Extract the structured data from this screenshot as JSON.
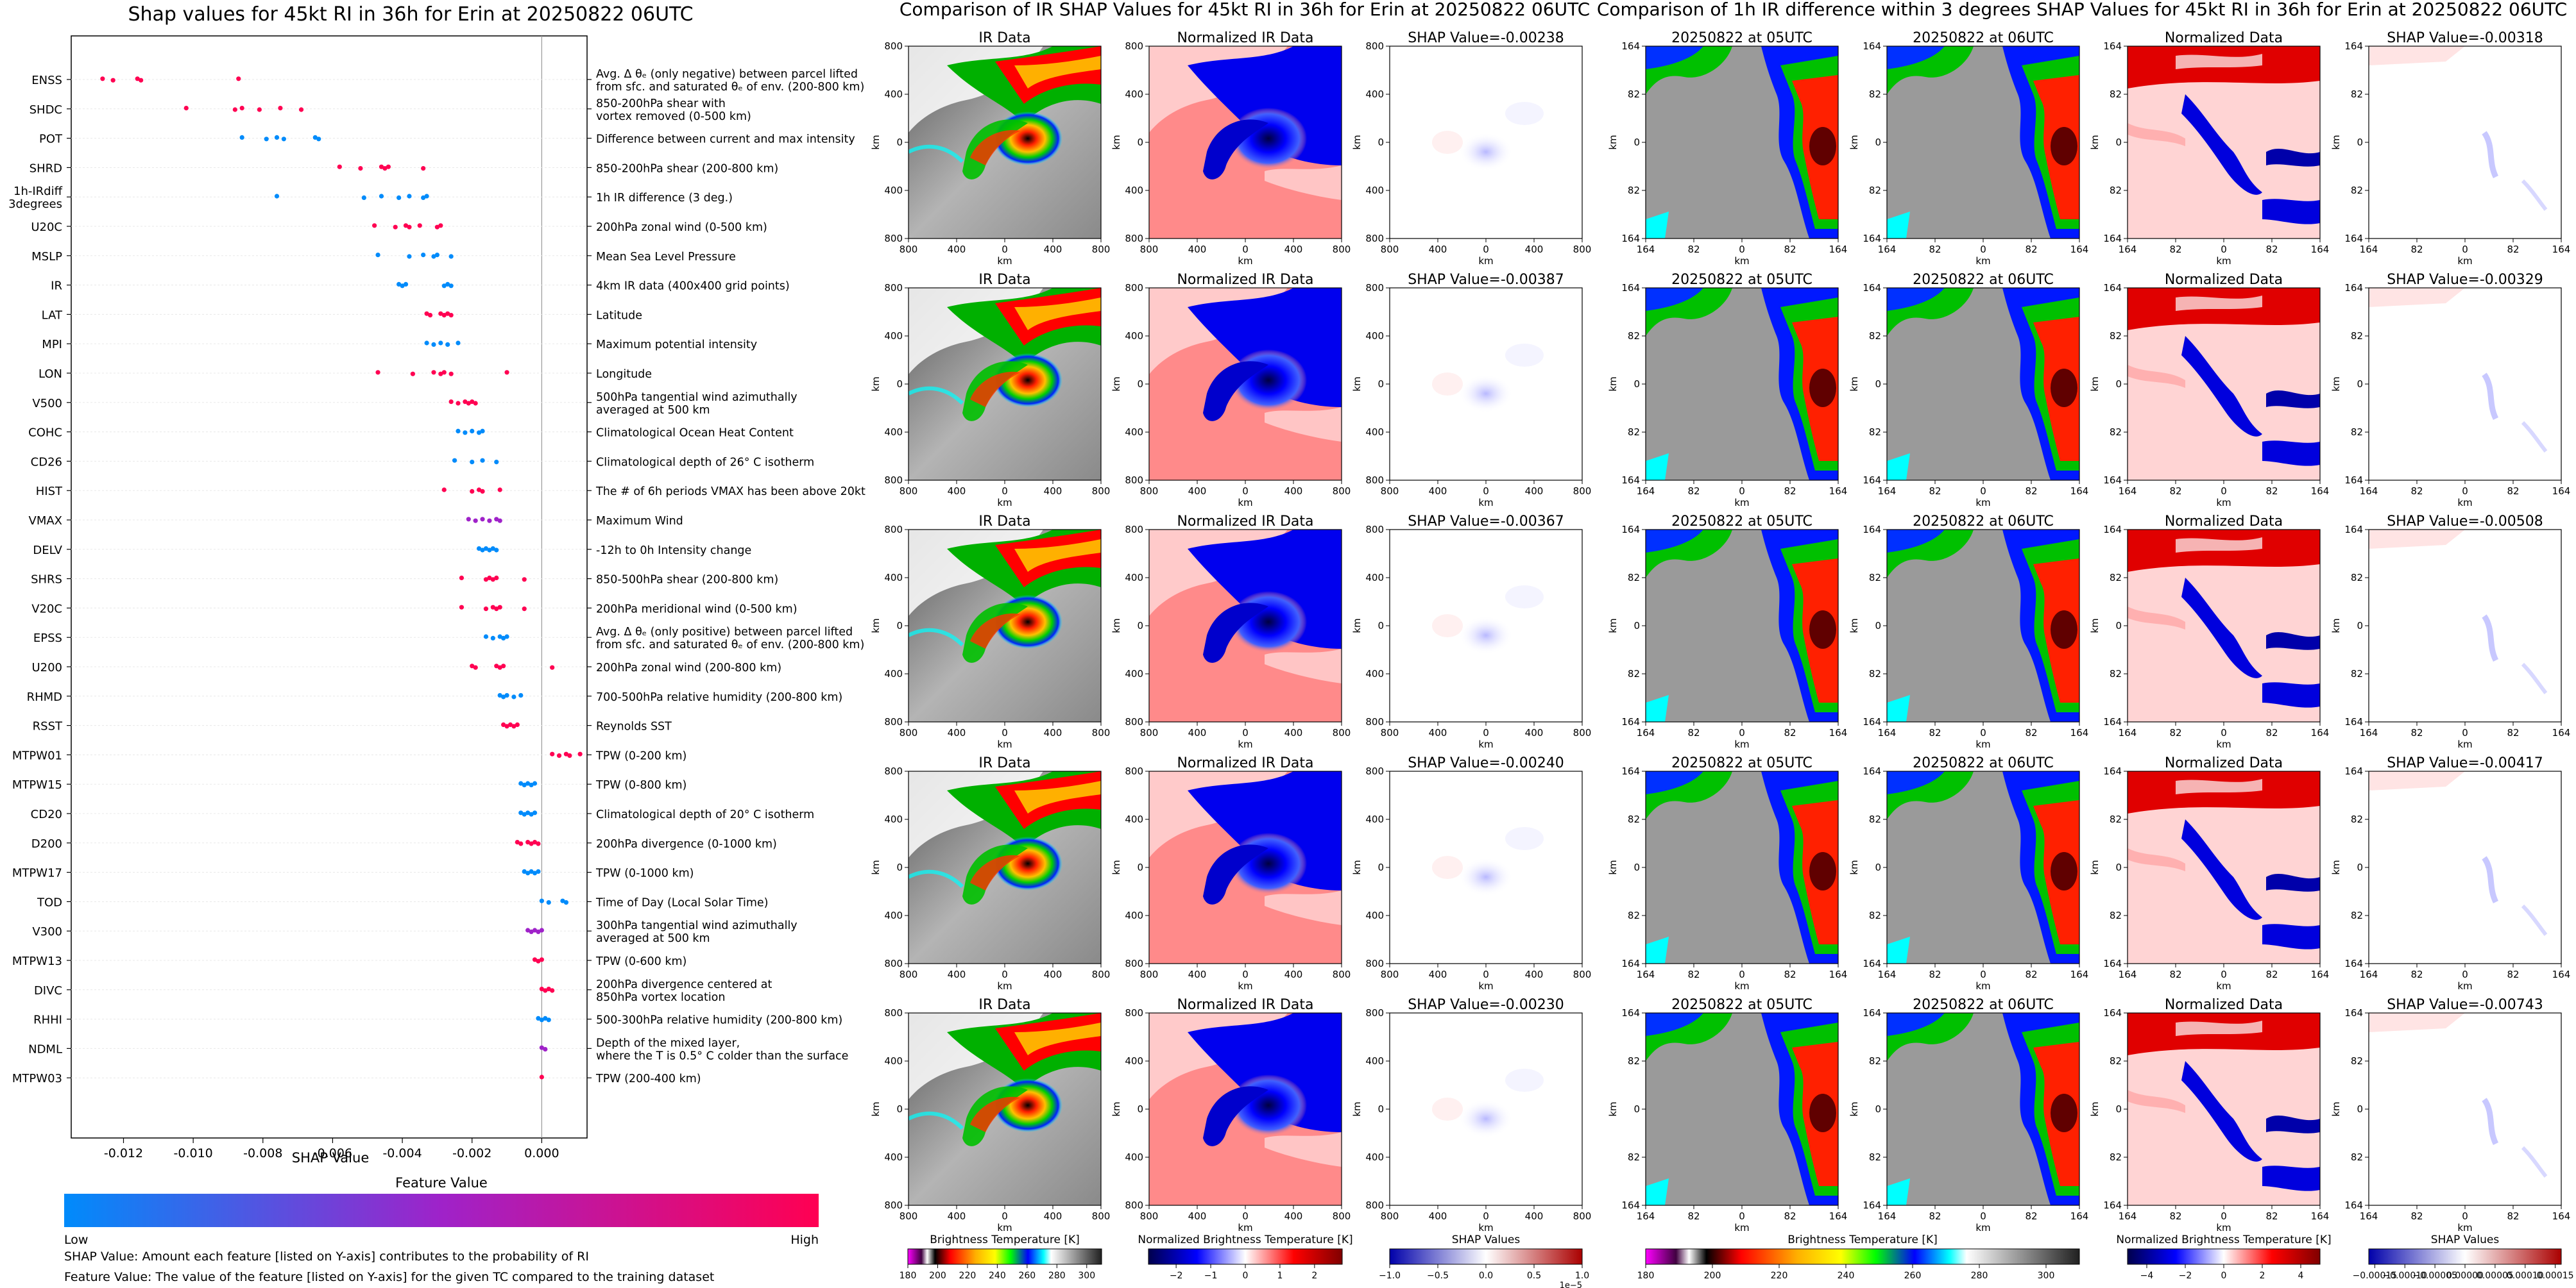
{
  "colors": {
    "low": "#008bfb",
    "mid": "#9f22c9",
    "high": "#ff0052",
    "shap_neg": "#0000cc",
    "shap_pos": "#cc0000"
  },
  "swarm": {
    "title": "Shap values for 45kt RI in 36h for Erin at 20250822 06UTC",
    "xlabel": "SHAP Value",
    "colorbar_title": "Feature Value",
    "colorbar_low": "Low",
    "colorbar_high": "High",
    "footnote_1": "SHAP Value: Amount each feature [listed on Y-axis] contributes to the probability of RI",
    "footnote_2": "Feature Value: The value of the feature [listed on Y-axis] for the given TC compared to the training dataset"
  },
  "chart_data": [
    {
      "type": "scatter",
      "title": "Shap values for 45kt RI in 36h for Erin at 20250822 06UTC",
      "xlabel": "SHAP Value",
      "xlim": [
        -0.0135,
        0.0013
      ],
      "xticks": [
        "-0.012",
        "-0.010",
        "-0.008",
        "-0.006",
        "-0.004",
        "-0.002",
        "0.000"
      ],
      "tick_values": [
        -0.012,
        -0.01,
        -0.008,
        -0.006,
        -0.004,
        -0.002,
        0.0
      ],
      "features": [
        {
          "name": "ENSS",
          "desc": "Avg. Δ θₑ (only negative) between parcel lifted\nfrom sfc. and saturated θₑ of env. (200-800 km)",
          "v": "high",
          "x": [
            -0.0126,
            -0.0123,
            -0.0116,
            -0.0115,
            -0.0087
          ]
        },
        {
          "name": "SHDC",
          "desc": "850-200hPa shear with\nvortex removed (0-500 km)",
          "v": "high",
          "x": [
            -0.0102,
            -0.0088,
            -0.0086,
            -0.0081,
            -0.0075,
            -0.0069
          ]
        },
        {
          "name": "POT",
          "desc": "Difference between current and max intensity",
          "v": "low",
          "x": [
            -0.0086,
            -0.0079,
            -0.0076,
            -0.0074,
            -0.0065,
            -0.0064
          ]
        },
        {
          "name": "SHRD",
          "desc": "850-200hPa shear (200-800 km)",
          "v": "high",
          "x": [
            -0.0058,
            -0.0052,
            -0.0046,
            -0.0045,
            -0.0044,
            -0.0034
          ]
        },
        {
          "name": "1h-IRdiff\n3degrees",
          "desc": "1h IR difference (3 deg.)",
          "v": "low",
          "x": [
            -0.0076,
            -0.0051,
            -0.0046,
            -0.0041,
            -0.0038,
            -0.0034,
            -0.0033
          ]
        },
        {
          "name": "U20C",
          "desc": "200hPa zonal wind (0-500 km)",
          "v": "high",
          "x": [
            -0.0048,
            -0.0042,
            -0.0039,
            -0.0038,
            -0.0035,
            -0.003,
            -0.0029
          ]
        },
        {
          "name": "MSLP",
          "desc": "Mean Sea Level Pressure",
          "v": "low",
          "x": [
            -0.0047,
            -0.0038,
            -0.0034,
            -0.0031,
            -0.003,
            -0.0026
          ]
        },
        {
          "name": "IR",
          "desc": "4km IR data (400x400 grid points)",
          "v": "low",
          "x": [
            -0.0041,
            -0.004,
            -0.0039,
            -0.0028,
            -0.0027,
            -0.0026
          ]
        },
        {
          "name": "LAT",
          "desc": "Latitude",
          "v": "high",
          "x": [
            -0.0033,
            -0.0032,
            -0.0029,
            -0.0028,
            -0.0027,
            -0.0026
          ]
        },
        {
          "name": "MPI",
          "desc": "Maximum potential intensity",
          "v": "low",
          "x": [
            -0.0033,
            -0.0031,
            -0.0029,
            -0.0027,
            -0.0024
          ]
        },
        {
          "name": "LON",
          "desc": "Longitude",
          "v": "high",
          "x": [
            -0.0047,
            -0.0037,
            -0.0031,
            -0.0029,
            -0.0028,
            -0.0026,
            -0.001
          ]
        },
        {
          "name": "V500",
          "desc": "500hPa tangential wind azimuthally\naveraged at 500 km",
          "v": "high",
          "x": [
            -0.0026,
            -0.0024,
            -0.0022,
            -0.0021,
            -0.002,
            -0.0019
          ]
        },
        {
          "name": "COHC",
          "desc": "Climatological Ocean Heat Content",
          "v": "low",
          "x": [
            -0.0024,
            -0.0022,
            -0.002,
            -0.0018,
            -0.0017
          ]
        },
        {
          "name": "CD26",
          "desc": "Climatological depth of 26° C isotherm",
          "v": "low",
          "x": [
            -0.0025,
            -0.002,
            -0.0017,
            -0.0013
          ]
        },
        {
          "name": "HIST",
          "desc": "The # of 6h periods VMAX has been above 20kt",
          "v": "high",
          "x": [
            -0.0028,
            -0.002,
            -0.0018,
            -0.0017,
            -0.0012
          ]
        },
        {
          "name": "VMAX",
          "desc": "Maximum Wind",
          "v": "mid",
          "x": [
            -0.0021,
            -0.0019,
            -0.0017,
            -0.0015,
            -0.0013,
            -0.0012
          ]
        },
        {
          "name": "DELV",
          "desc": "-12h to 0h Intensity change",
          "v": "low",
          "x": [
            -0.0018,
            -0.0017,
            -0.0016,
            -0.0015,
            -0.0014,
            -0.0013
          ]
        },
        {
          "name": "SHRS",
          "desc": "850-500hPa shear (200-800 km)",
          "v": "high",
          "x": [
            -0.0023,
            -0.0016,
            -0.0015,
            -0.0014,
            -0.0013,
            -0.0005
          ]
        },
        {
          "name": "V20C",
          "desc": "200hPa meridional wind (0-500 km)",
          "v": "high",
          "x": [
            -0.0023,
            -0.0016,
            -0.0014,
            -0.0013,
            -0.0012,
            -0.0005
          ]
        },
        {
          "name": "EPSS",
          "desc": "Avg. Δ θₑ (only positive) between parcel lifted\nfrom sfc. and saturated θₑ of env. (200-800 km)",
          "v": "low",
          "x": [
            -0.0016,
            -0.0014,
            -0.0012,
            -0.0011,
            -0.001
          ]
        },
        {
          "name": "U200",
          "desc": "200hPa zonal wind (200-800 km)",
          "v": "high",
          "x": [
            -0.002,
            -0.0019,
            -0.0013,
            -0.0012,
            -0.0011,
            0.0003
          ]
        },
        {
          "name": "RHMD",
          "desc": "700-500hPa relative humidity (200-800 km)",
          "v": "low",
          "x": [
            -0.0012,
            -0.0011,
            -0.001,
            -0.0008,
            -0.0006
          ]
        },
        {
          "name": "RSST",
          "desc": "Reynolds SST",
          "v": "high",
          "x": [
            -0.0011,
            -0.001,
            -0.0009,
            -0.0008,
            -0.0007
          ]
        },
        {
          "name": "MTPW01",
          "desc": "TPW (0-200 km)",
          "v": "high",
          "x": [
            0.0003,
            0.0005,
            0.0007,
            0.0008,
            0.0011
          ]
        },
        {
          "name": "MTPW15",
          "desc": "TPW (0-800 km)",
          "v": "low",
          "x": [
            -0.0006,
            -0.0005,
            -0.0004,
            -0.0003,
            -0.0002
          ]
        },
        {
          "name": "CD20",
          "desc": "Climatological depth of 20° C isotherm",
          "v": "low",
          "x": [
            -0.0006,
            -0.0005,
            -0.0004,
            -0.0003,
            -0.0002
          ]
        },
        {
          "name": "D200",
          "desc": "200hPa divergence (0-1000 km)",
          "v": "high",
          "x": [
            -0.0007,
            -0.0006,
            -0.0004,
            -0.0003,
            -0.0002,
            -0.0001
          ]
        },
        {
          "name": "MTPW17",
          "desc": "TPW (0-1000 km)",
          "v": "low",
          "x": [
            -0.0005,
            -0.0004,
            -0.0003,
            -0.0002,
            -0.0001
          ]
        },
        {
          "name": "TOD",
          "desc": "Time of Day (Local Solar Time)",
          "v": "low",
          "x": [
            0.0,
            0.0002,
            0.0006,
            0.0007
          ]
        },
        {
          "name": "V300",
          "desc": "300hPa tangential wind azimuthally\naveraged at 500 km",
          "v": "mid",
          "x": [
            -0.0004,
            -0.0003,
            -0.0002,
            -0.0001,
            0.0
          ]
        },
        {
          "name": "MTPW13",
          "desc": "TPW (0-600 km)",
          "v": "high",
          "x": [
            -0.0002,
            -0.0001,
            0.0
          ]
        },
        {
          "name": "DIVC",
          "desc": "200hPa divergence centered at\n850hPa vortex location",
          "v": "high",
          "x": [
            0.0,
            0.0001,
            0.0002,
            0.0003
          ]
        },
        {
          "name": "RHHI",
          "desc": "500-300hPa relative humidity (200-800 km)",
          "v": "low",
          "x": [
            -0.0001,
            0.0,
            0.0001,
            0.0002
          ]
        },
        {
          "name": "NDML",
          "desc": "Depth of the mixed layer,\nwhere the T is 0.5° C colder than the surface",
          "v": "mid",
          "x": [
            0.0,
            0.0001
          ]
        },
        {
          "name": "MTPW03",
          "desc": "TPW (200-400 km)",
          "v": "high",
          "x": [
            0.0
          ]
        }
      ]
    },
    {
      "type": "heatmap",
      "title": "Comparison of IR SHAP Values for 45kt RI in 36h for Erin at 20250822 06UTC",
      "columns": [
        "IR Data",
        "Normalized IR Data"
      ],
      "shap_values": [
        "SHAP Value=-0.00238",
        "SHAP Value=-0.00387",
        "SHAP Value=-0.00367",
        "SHAP Value=-0.00240",
        "SHAP Value=-0.00230"
      ],
      "ticks": [
        "800",
        "400",
        "0",
        "400",
        "800"
      ],
      "axis_label": "km",
      "colorbars": [
        {
          "label": "Brightness Temperature [K]",
          "ticks": [
            "180",
            "200",
            "220",
            "240",
            "260",
            "280",
            "300"
          ],
          "range": [
            180,
            310
          ]
        },
        {
          "label": "Normalized Brightness Temperature [K]",
          "ticks": [
            "−2",
            "−1",
            "0",
            "1",
            "2"
          ],
          "range": [
            -2.8,
            2.8
          ]
        },
        {
          "label": "SHAP Values",
          "ticks": [
            "−1.0",
            "−0.5",
            "0.0",
            "0.5",
            "1.0"
          ],
          "range": [
            -1.0,
            1.0
          ],
          "multiplier": "1e−5"
        }
      ]
    },
    {
      "type": "heatmap",
      "title": "Comparison of 1h IR difference within 3 degrees SHAP Values for 45kt RI in 36h for Erin at 20250822 06UTC",
      "columns": [
        "20250822 at 05UTC",
        "20250822 at 06UTC",
        "Normalized Data"
      ],
      "shap_values": [
        "SHAP Value=-0.00318",
        "SHAP Value=-0.00329",
        "SHAP Value=-0.00508",
        "SHAP Value=-0.00417",
        "SHAP Value=-0.00743"
      ],
      "ticks": [
        "164",
        "82",
        "0",
        "82",
        "164"
      ],
      "axis_label": "km",
      "colorbars": [
        {
          "label": "Brightness Temperature [K]",
          "ticks": [
            "180",
            "200",
            "220",
            "240",
            "260",
            "280",
            "300"
          ],
          "range": [
            180,
            310
          ]
        },
        {
          "label": "Normalized Brightness Temperature [K]",
          "ticks": [
            "−4",
            "−2",
            "0",
            "2",
            "4"
          ],
          "range": [
            -5,
            5
          ]
        },
        {
          "label": "SHAP Values",
          "ticks": [
            "−0.00015",
            "−0.00010",
            "−0.00005",
            "0.00000",
            "0.00005",
            "0.00010",
            "0.00015"
          ],
          "range": [
            -0.00016,
            0.00016
          ]
        }
      ]
    }
  ]
}
